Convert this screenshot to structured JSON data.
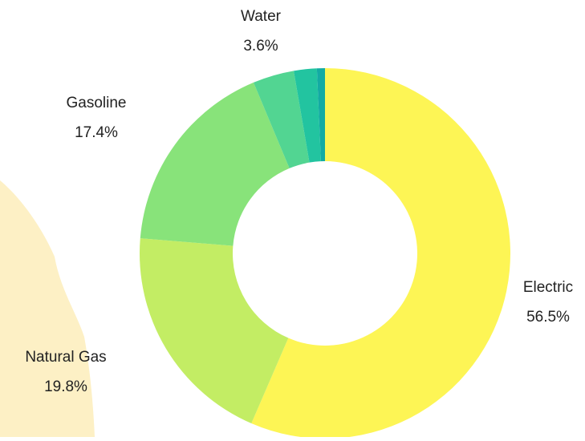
{
  "chart_data": {
    "type": "donut",
    "categories": [
      "Electric",
      "Natural Gas",
      "Gasoline",
      "Water",
      null,
      null
    ],
    "values": [
      56.5,
      19.8,
      17.4,
      3.6,
      2.0,
      0.7
    ],
    "value_labels": [
      "56.5%",
      "19.8%",
      "17.4%",
      "3.6%",
      null,
      null
    ],
    "colors": [
      "#fdf555",
      "#c3ed64",
      "#88e37a",
      "#52d592",
      "#22c4a0",
      "#13aba3"
    ]
  }
}
